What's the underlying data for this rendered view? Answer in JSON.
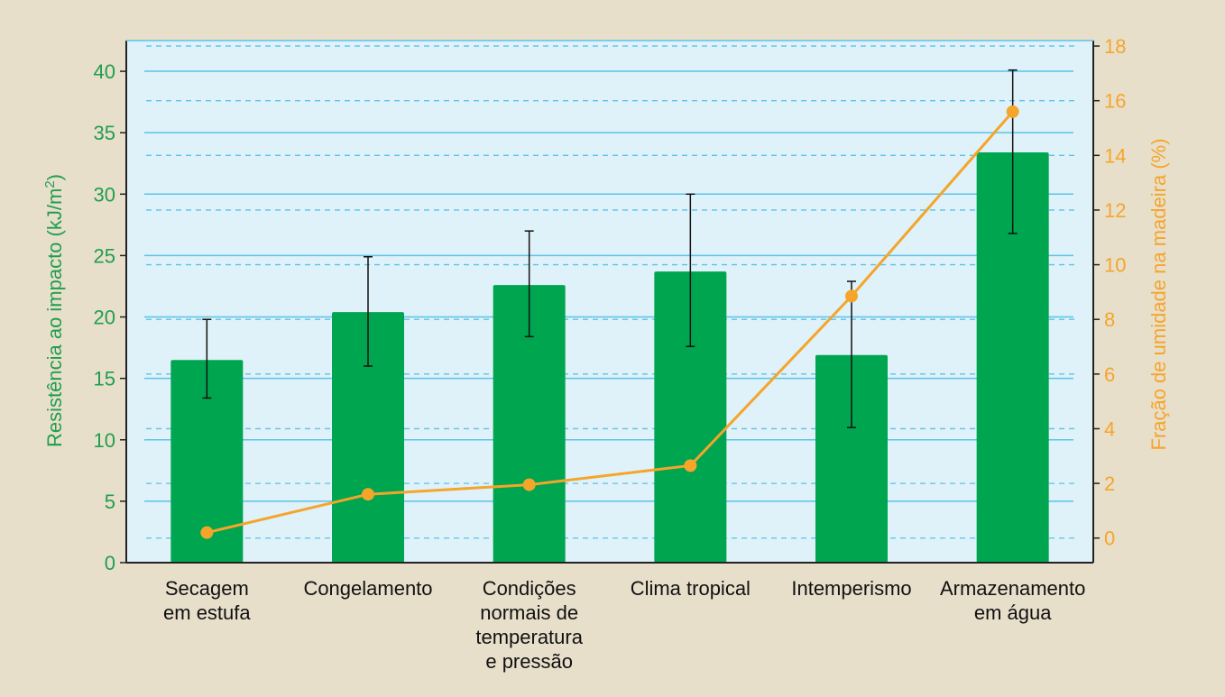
{
  "chart_data": {
    "type": "bar",
    "title": "",
    "categories": [
      [
        "Secagem",
        "em estufa"
      ],
      [
        "Congelamento"
      ],
      [
        "Condições",
        "normais de",
        "temperatura",
        "e pressão"
      ],
      [
        "Clima tropical"
      ],
      [
        "Intemperismo"
      ],
      [
        "Armazenamento",
        "em água"
      ]
    ],
    "series": [
      {
        "name": "Resistência ao impacto",
        "kind": "bar",
        "axis": "left",
        "values": [
          16.5,
          20.4,
          22.6,
          23.7,
          16.9,
          33.4
        ],
        "error_low": [
          13.4,
          16.0,
          18.4,
          17.6,
          11.0,
          26.8
        ],
        "error_high": [
          19.8,
          24.9,
          27.0,
          30.0,
          22.9,
          40.1
        ]
      },
      {
        "name": "Fração de umidade na madeira",
        "kind": "line",
        "axis": "right",
        "values": [
          0.2,
          1.6,
          1.95,
          2.65,
          8.85,
          15.6
        ]
      }
    ],
    "ylabel": "Resistência ao impacto (kJ/m²)",
    "ylabel_main": "Resistência ao impacto (kJ/m",
    "ylabel_sup": "2",
    "ylabel_end": ")",
    "y2label": "Fração de umidade na madeira (%)",
    "ylim": [
      0,
      42.5
    ],
    "y_ticks": [
      0,
      5,
      10,
      15,
      20,
      25,
      30,
      35,
      40
    ],
    "y2lim": [
      -0.9,
      18.2
    ],
    "y2_ticks": [
      0,
      2,
      4,
      6,
      8,
      10,
      12,
      14,
      16,
      18
    ],
    "grid": true
  },
  "colors": {
    "bar": "#00a550",
    "line": "#f5a52a",
    "left_axis": "#1f9e4e",
    "right_axis": "#f5a52a",
    "plot_bg": "#dff1f9",
    "grid": "#5cc3e8",
    "error": "#111111",
    "page_bg": "#e8dfcb"
  }
}
